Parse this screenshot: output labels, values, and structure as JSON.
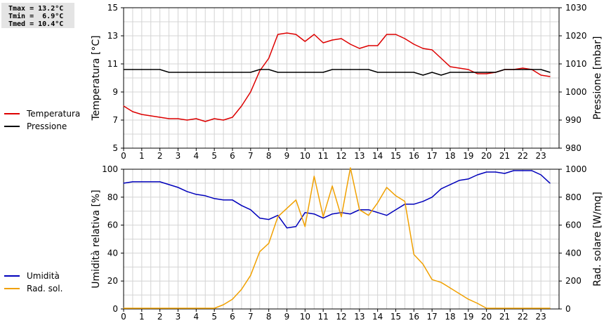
{
  "stats": {
    "tmax": "Tmax = 13.2°C",
    "tmin": "Tmin =  6.9°C",
    "tmed": "Tmed = 10.4°C"
  },
  "colors": {
    "temperature": "#dd0000",
    "pressure": "#000000",
    "humidity": "#0000bb",
    "solar": "#f0a000",
    "grid": "#d4d4d4"
  },
  "legend_top": [
    {
      "label": "Temperatura",
      "color": "#dd0000"
    },
    {
      "label": "Pressione",
      "color": "#000000"
    }
  ],
  "legend_bottom": [
    {
      "label": "Umidità",
      "color": "#0000bb"
    },
    {
      "label": "Rad. sol.",
      "color": "#f0a000"
    }
  ],
  "chart_data": [
    {
      "type": "line",
      "xlabel": "",
      "ylabel": "Temperatura [°C]",
      "ylabel_right": "Pressione [mbar]",
      "xlim": [
        0,
        24
      ],
      "ylim": [
        5,
        15
      ],
      "ylim_right": [
        980,
        1030
      ],
      "xticks": [
        0,
        1,
        2,
        3,
        4,
        5,
        6,
        7,
        8,
        9,
        10,
        11,
        12,
        13,
        14,
        15,
        16,
        17,
        18,
        19,
        20,
        21,
        22,
        23
      ],
      "yticks": [
        5,
        7,
        9,
        11,
        13,
        15
      ],
      "yticks_right": [
        980,
        990,
        1000,
        1010,
        1020,
        1030
      ],
      "grid": true,
      "series": [
        {
          "name": "Temperatura",
          "axis": "left",
          "x": [
            0,
            0.5,
            1,
            1.5,
            2,
            2.5,
            3,
            3.5,
            4,
            4.5,
            5,
            5.5,
            6,
            6.5,
            7,
            7.5,
            8,
            8.5,
            9,
            9.5,
            10,
            10.5,
            11,
            11.5,
            12,
            12.5,
            13,
            13.5,
            14,
            14.5,
            15,
            15.5,
            16,
            16.5,
            17,
            17.5,
            18,
            18.5,
            19,
            19.5,
            20,
            20.5,
            21,
            21.5,
            22,
            22.5,
            23,
            23.5
          ],
          "values": [
            8.0,
            7.6,
            7.4,
            7.3,
            7.2,
            7.1,
            7.1,
            7.0,
            7.1,
            6.9,
            7.1,
            7.0,
            7.2,
            8.0,
            9.0,
            10.5,
            11.4,
            13.1,
            13.2,
            13.1,
            12.6,
            13.1,
            12.5,
            12.7,
            12.8,
            12.4,
            12.1,
            12.3,
            12.3,
            13.1,
            13.1,
            12.8,
            12.4,
            12.1,
            12.0,
            11.4,
            10.8,
            10.7,
            10.6,
            10.3,
            10.3,
            10.4,
            10.6,
            10.6,
            10.7,
            10.6,
            10.2,
            10.1
          ]
        },
        {
          "name": "Pressione",
          "axis": "right",
          "x": [
            0,
            0.5,
            1,
            1.5,
            2,
            2.5,
            3,
            3.5,
            4,
            4.5,
            5,
            5.5,
            6,
            6.5,
            7,
            7.5,
            8,
            8.5,
            9,
            9.5,
            10,
            10.5,
            11,
            11.5,
            12,
            12.5,
            13,
            13.5,
            14,
            14.5,
            15,
            15.5,
            16,
            16.5,
            17,
            17.5,
            18,
            18.5,
            19,
            19.5,
            20,
            20.5,
            21,
            21.5,
            22,
            22.5,
            23,
            23.5
          ],
          "values": [
            1008,
            1008,
            1008,
            1008,
            1008,
            1007,
            1007,
            1007,
            1007,
            1007,
            1007,
            1007,
            1007,
            1007,
            1007,
            1008,
            1008,
            1007,
            1007,
            1007,
            1007,
            1007,
            1007,
            1008,
            1008,
            1008,
            1008,
            1008,
            1007,
            1007,
            1007,
            1007,
            1007,
            1006,
            1007,
            1006,
            1007,
            1007,
            1007,
            1007,
            1007,
            1007,
            1008,
            1008,
            1008,
            1008,
            1008,
            1007
          ]
        }
      ]
    },
    {
      "type": "line",
      "xlabel": "",
      "ylabel": "Umidità relativa [%]",
      "ylabel_right": "Rad. solare [W/mq]",
      "xlim": [
        0,
        24
      ],
      "ylim": [
        0,
        100
      ],
      "ylim_right": [
        0,
        1000
      ],
      "xticks": [
        0,
        1,
        2,
        3,
        4,
        5,
        6,
        7,
        8,
        9,
        10,
        11,
        12,
        13,
        14,
        15,
        16,
        17,
        18,
        19,
        20,
        21,
        22,
        23
      ],
      "yticks": [
        0,
        20,
        40,
        60,
        80,
        100
      ],
      "yticks_right": [
        0,
        200,
        400,
        600,
        800,
        1000
      ],
      "grid": true,
      "series": [
        {
          "name": "Umidità",
          "axis": "left",
          "x": [
            0,
            0.5,
            1,
            1.5,
            2,
            2.5,
            3,
            3.5,
            4,
            4.5,
            5,
            5.5,
            6,
            6.5,
            7,
            7.5,
            8,
            8.5,
            9,
            9.5,
            10,
            10.5,
            11,
            11.5,
            12,
            12.5,
            13,
            13.5,
            14,
            14.5,
            15,
            15.5,
            16,
            16.5,
            17,
            17.5,
            18,
            18.5,
            19,
            19.5,
            20,
            20.5,
            21,
            21.5,
            22,
            22.5,
            23,
            23.5
          ],
          "values": [
            90,
            91,
            91,
            91,
            91,
            89,
            87,
            84,
            82,
            81,
            79,
            78,
            78,
            74,
            71,
            65,
            64,
            67,
            58,
            59,
            69,
            68,
            65,
            68,
            69,
            68,
            71,
            71,
            69,
            67,
            71,
            75,
            75,
            77,
            80,
            86,
            89,
            92,
            93,
            96,
            98,
            98,
            97,
            99,
            99,
            99,
            96,
            90
          ]
        },
        {
          "name": "Rad. sol.",
          "axis": "right",
          "x": [
            0,
            0.5,
            1,
            1.5,
            2,
            2.5,
            3,
            3.5,
            4,
            4.5,
            5,
            5.5,
            6,
            6.5,
            7,
            7.5,
            8,
            8.5,
            9,
            9.5,
            10,
            10.5,
            11,
            11.5,
            12,
            12.5,
            13,
            13.5,
            14,
            14.5,
            15,
            15.5,
            16,
            16.5,
            17,
            17.5,
            18,
            18.5,
            19,
            19.5,
            20,
            20.5,
            21,
            21.5,
            22,
            22.5,
            23,
            23.5
          ],
          "values": [
            5,
            5,
            5,
            5,
            5,
            5,
            5,
            5,
            5,
            5,
            5,
            30,
            70,
            140,
            240,
            410,
            470,
            660,
            720,
            780,
            590,
            950,
            660,
            880,
            660,
            1010,
            710,
            670,
            760,
            870,
            810,
            770,
            390,
            320,
            210,
            190,
            150,
            110,
            70,
            40,
            5,
            5,
            5,
            5,
            5,
            5,
            5,
            5
          ]
        }
      ]
    }
  ]
}
